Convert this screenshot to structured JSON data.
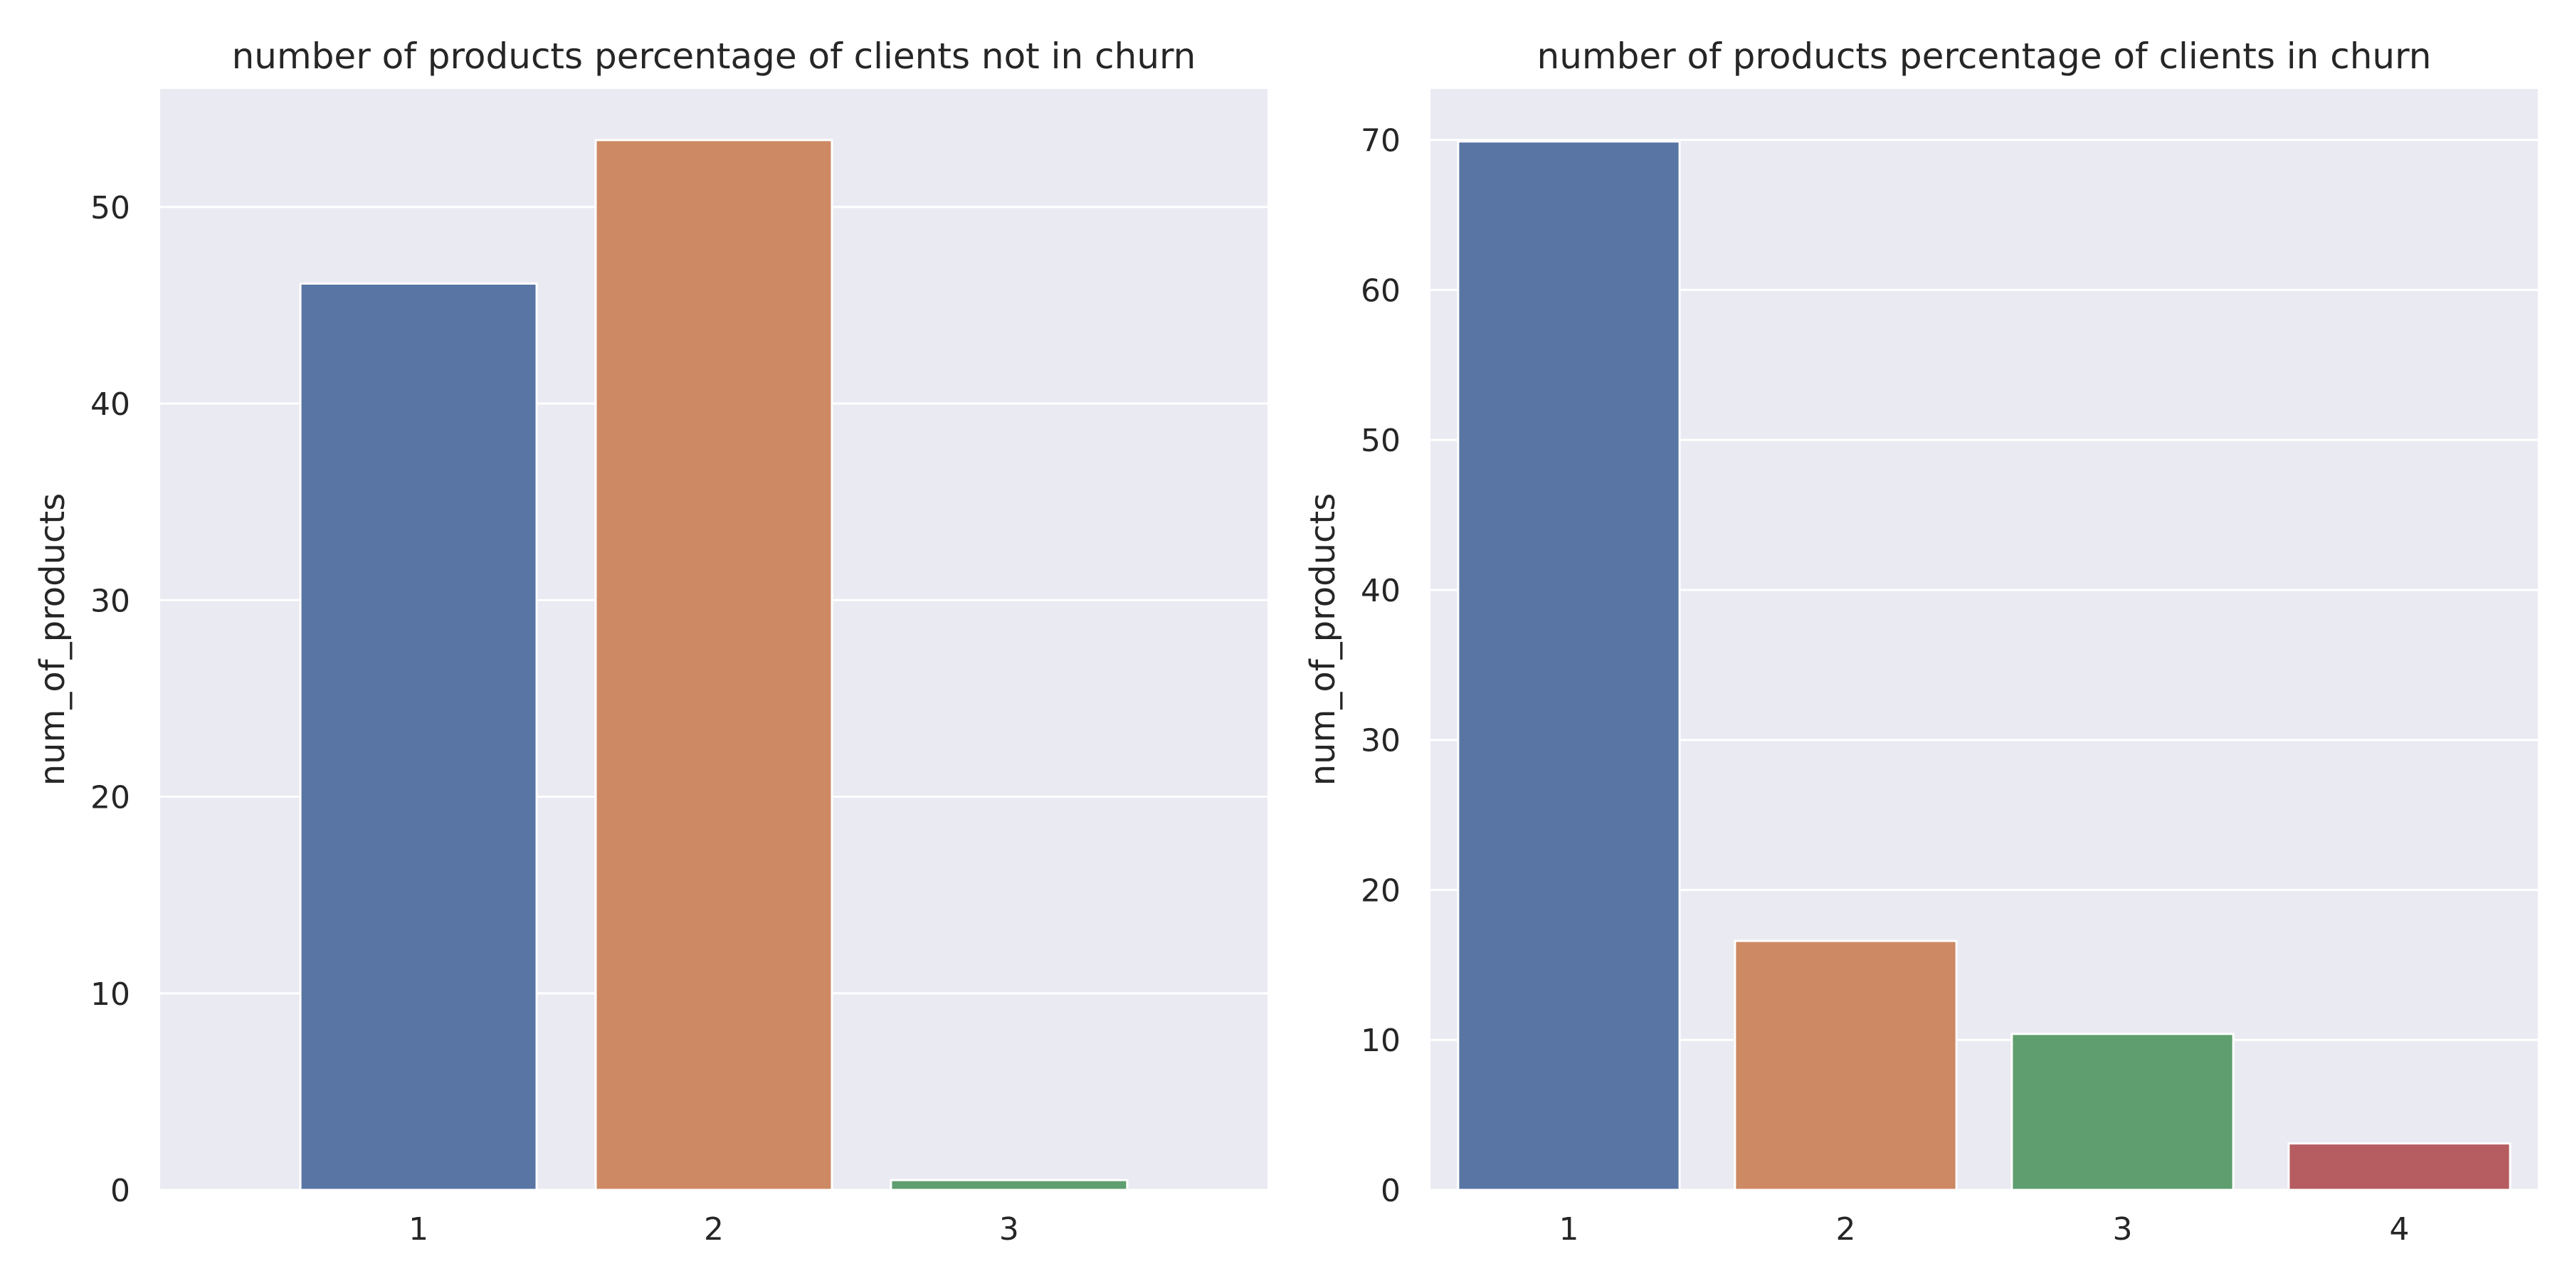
{
  "chart_data": [
    {
      "type": "bar",
      "title": "number of products percentage of clients not in churn",
      "xlabel": "",
      "ylabel": "num_of_products",
      "categories": [
        "1",
        "2",
        "3"
      ],
      "values": [
        46.1,
        53.4,
        0.5
      ],
      "ylim": [
        0,
        56
      ],
      "yticks": [
        0,
        10,
        20,
        30,
        40,
        50
      ],
      "grid": true,
      "colors": [
        "#5875a4",
        "#cc8963",
        "#5f9e6e"
      ]
    },
    {
      "type": "bar",
      "title": "number of products percentage of clients in churn",
      "xlabel": "",
      "ylabel": "num_of_products",
      "categories": [
        "1",
        "2",
        "3",
        "4"
      ],
      "values": [
        69.9,
        16.6,
        10.4,
        3.1
      ],
      "ylim": [
        0,
        73.4
      ],
      "yticks": [
        0,
        10,
        20,
        30,
        40,
        50,
        60,
        70
      ],
      "grid": true,
      "colors": [
        "#5875a4",
        "#cc8963",
        "#5f9e6e",
        "#b55d60"
      ]
    }
  ],
  "style": {
    "plot_background": "#eaeaf2",
    "grid_color": "#ffffff",
    "text_color": "#262626"
  }
}
